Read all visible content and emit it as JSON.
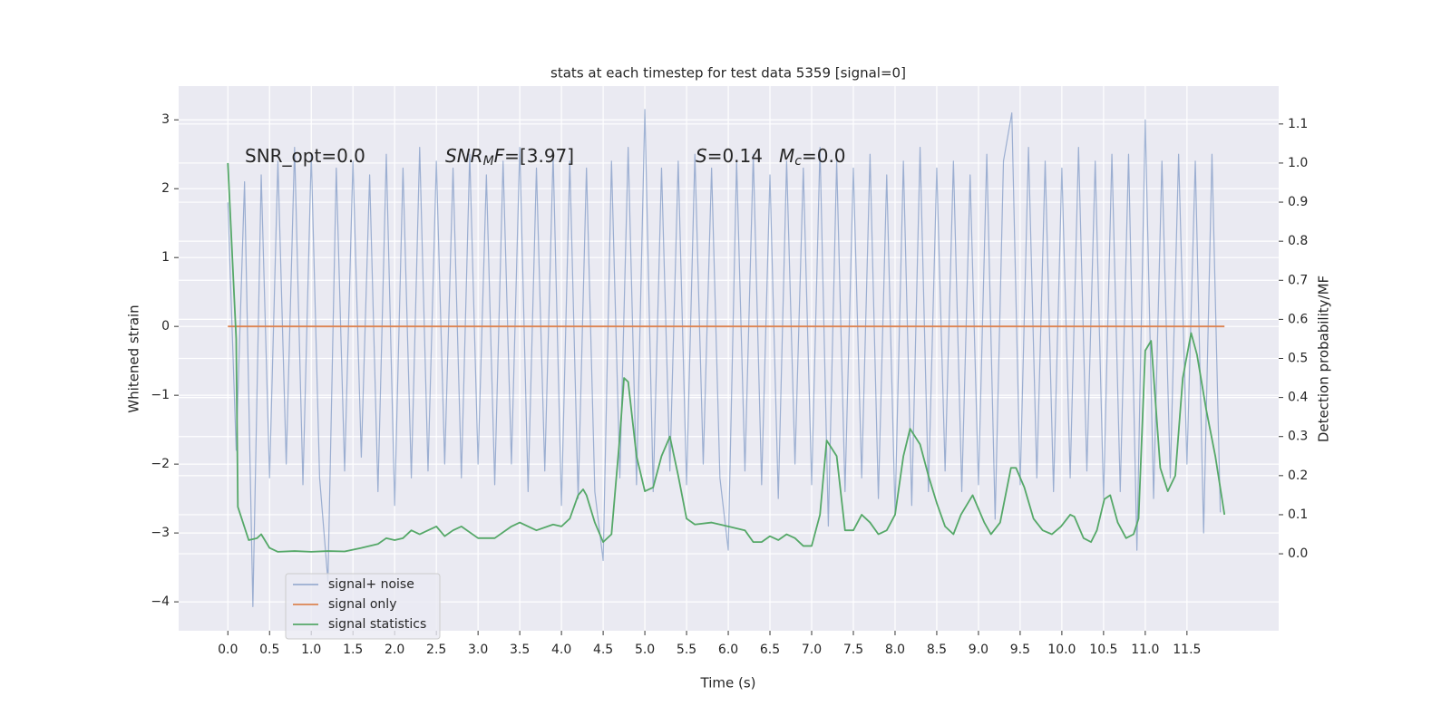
{
  "chart_data": {
    "type": "line",
    "title": "stats at each timestep for test data 5359 [signal=0]",
    "x_label": "Time (s)",
    "y_label": "Whitened strain",
    "y2_label": "Detection probability/MF",
    "xlim": [
      -0.59,
      12.6
    ],
    "ylim": [
      -4.42,
      3.49
    ],
    "y2lim": [
      -0.197,
      1.197
    ],
    "xticks": [
      {
        "value": 0,
        "label": "0.0"
      },
      0.5,
      {
        "value": 1,
        "label": "1.0"
      },
      1.5,
      {
        "value": 2,
        "label": "2.0"
      },
      2.5,
      {
        "value": 3,
        "label": "3.0"
      },
      3.5,
      {
        "value": 4,
        "label": "4.0"
      },
      4.5,
      {
        "value": 5,
        "label": "5.0"
      },
      5.5,
      {
        "value": 6,
        "label": "6.0"
      },
      6.5,
      {
        "value": 7,
        "label": "7.0"
      },
      7.5,
      {
        "value": 8,
        "label": "8.0"
      },
      8.5,
      {
        "value": 9,
        "label": "9.0"
      },
      9.5,
      {
        "value": 10,
        "label": "10.0"
      },
      10.5,
      {
        "value": 11,
        "label": "11.0"
      },
      11.5
    ],
    "yticks": [
      {
        "value": -4,
        "label": "−4"
      },
      {
        "value": -3,
        "label": "−3"
      },
      {
        "value": -2,
        "label": "−2"
      },
      {
        "value": -1,
        "label": "−1"
      },
      0,
      1,
      2,
      3
    ],
    "y2ticks": [
      {
        "value": 0,
        "label": "0.0"
      },
      0.1,
      0.2,
      0.3,
      0.4,
      0.5,
      0.6,
      0.7,
      0.8,
      0.9,
      {
        "value": 1,
        "label": "1.0"
      },
      1.1
    ],
    "grid": true,
    "legend": "lower left",
    "annotations": [
      [
        {
          "text": "SNR_opt=0.0"
        }
      ],
      [
        {
          "text": "SNR",
          "italic": true
        },
        {
          "text": "M",
          "italic": true,
          "sub": true
        },
        {
          "text": "F",
          "italic": true
        },
        {
          "text": "=[3.97]"
        }
      ],
      [
        {
          "text": "S",
          "italic": true
        },
        {
          "text": "=0.14"
        }
      ],
      [
        {
          "text": "M",
          "italic": true
        },
        {
          "text": "c",
          "italic": true,
          "sub": true
        },
        {
          "text": "=0.0"
        }
      ]
    ],
    "series": [
      {
        "name": "signal+ noise",
        "color": "#4c72b0",
        "opacity": 0.5,
        "x": [
          0.0,
          0.1,
          0.2,
          0.3,
          0.4,
          0.5,
          0.6,
          0.7,
          0.8,
          0.9,
          1.0,
          1.1,
          1.2,
          1.3,
          1.4,
          1.5,
          1.6,
          1.7,
          1.8,
          1.9,
          2.0,
          2.1,
          2.2,
          2.3,
          2.4,
          2.5,
          2.6,
          2.7,
          2.8,
          2.9,
          3.0,
          3.1,
          3.2,
          3.3,
          3.4,
          3.5,
          3.6,
          3.7,
          3.8,
          3.9,
          4.0,
          4.1,
          4.2,
          4.3,
          4.4,
          4.5,
          4.6,
          4.7,
          4.8,
          4.9,
          5.0,
          5.1,
          5.2,
          5.3,
          5.4,
          5.5,
          5.6,
          5.7,
          5.8,
          5.9,
          6.0,
          6.1,
          6.2,
          6.3,
          6.4,
          6.5,
          6.6,
          6.7,
          6.8,
          6.9,
          7.0,
          7.1,
          7.2,
          7.3,
          7.4,
          7.5,
          7.6,
          7.7,
          7.8,
          7.9,
          8.0,
          8.1,
          8.2,
          8.3,
          8.4,
          8.5,
          8.6,
          8.7,
          8.8,
          8.9,
          9.0,
          9.1,
          9.2,
          9.3,
          9.4,
          9.5,
          9.6,
          9.7,
          9.8,
          9.9,
          10.0,
          10.1,
          10.2,
          10.3,
          10.4,
          10.5,
          10.6,
          10.7,
          10.8,
          10.9,
          11.0,
          11.1,
          11.2,
          11.3,
          11.4,
          11.5,
          11.6,
          11.7,
          11.8,
          11.9
        ],
        "values": [
          1.8,
          -1.8,
          2.1,
          -4.07,
          2.2,
          -2.2,
          2.4,
          -2.0,
          2.6,
          -2.3,
          2.5,
          -2.2,
          -3.7,
          2.3,
          -2.1,
          2.4,
          -1.9,
          2.2,
          -2.4,
          2.5,
          -2.6,
          2.3,
          -2.2,
          2.6,
          -2.1,
          2.4,
          -2.0,
          2.3,
          -2.2,
          2.5,
          -2.0,
          2.2,
          -2.3,
          2.4,
          -2.0,
          2.6,
          -2.4,
          2.3,
          -2.1,
          2.5,
          -2.6,
          2.4,
          -2.5,
          2.3,
          -2.4,
          -3.4,
          2.4,
          -2.2,
          2.6,
          -2.3,
          3.15,
          -2.4,
          2.3,
          -2.1,
          2.4,
          -2.3,
          2.5,
          -2.0,
          2.3,
          -2.2,
          -3.25,
          2.4,
          -2.1,
          2.5,
          -2.3,
          2.2,
          -2.5,
          2.4,
          -2.0,
          2.3,
          -2.3,
          2.6,
          -2.9,
          2.4,
          -2.4,
          2.3,
          -2.2,
          2.5,
          -2.5,
          2.2,
          -2.7,
          2.4,
          -2.6,
          2.6,
          -2.4,
          2.3,
          -2.1,
          2.4,
          -2.4,
          2.2,
          -2.3,
          2.5,
          -2.8,
          2.4,
          3.1,
          -2.3,
          2.6,
          -2.2,
          2.4,
          -2.4,
          2.3,
          -2.2,
          2.6,
          -2.1,
          2.4,
          -2.5,
          2.5,
          -2.4,
          2.5,
          -3.25,
          3.0,
          -2.5,
          2.4,
          -2.2,
          2.5,
          -2.0,
          2.4,
          -3.0,
          2.5,
          -2.7
        ]
      },
      {
        "name": "signal only",
        "color": "#dd8452",
        "opacity": 1,
        "x": [
          0.0,
          11.95
        ],
        "values": [
          0,
          0
        ]
      },
      {
        "name": "signal statistics",
        "color": "#55a868",
        "opacity": 1,
        "axis": "y2",
        "x": [
          0.0,
          0.1,
          0.12,
          0.25,
          0.35,
          0.4,
          0.5,
          0.6,
          0.8,
          1.0,
          1.2,
          1.4,
          1.6,
          1.8,
          1.9,
          2.0,
          2.1,
          2.2,
          2.3,
          2.4,
          2.5,
          2.6,
          2.7,
          2.8,
          3.0,
          3.2,
          3.4,
          3.5,
          3.7,
          3.9,
          4.0,
          4.1,
          4.2,
          4.26,
          4.3,
          4.4,
          4.5,
          4.6,
          4.7,
          4.75,
          4.8,
          4.9,
          5.0,
          5.1,
          5.2,
          5.3,
          5.4,
          5.5,
          5.6,
          5.8,
          6.0,
          6.2,
          6.3,
          6.4,
          6.5,
          6.6,
          6.7,
          6.8,
          6.9,
          7.0,
          7.1,
          7.18,
          7.3,
          7.4,
          7.5,
          7.6,
          7.7,
          7.8,
          7.9,
          8.0,
          8.1,
          8.18,
          8.3,
          8.4,
          8.5,
          8.6,
          8.7,
          8.79,
          8.93,
          9.07,
          9.15,
          9.26,
          9.39,
          9.45,
          9.55,
          9.66,
          9.77,
          9.88,
          9.99,
          10.1,
          10.15,
          10.26,
          10.35,
          10.42,
          10.51,
          10.58,
          10.67,
          10.77,
          10.86,
          10.92,
          11.0,
          11.07,
          11.18,
          11.27,
          11.36,
          11.45,
          11.55,
          11.62,
          11.73,
          11.84,
          11.95
        ],
        "values": [
          1.0,
          0.55,
          0.12,
          0.035,
          0.04,
          0.05,
          0.015,
          0.005,
          0.007,
          0.005,
          0.007,
          0.006,
          0.015,
          0.025,
          0.04,
          0.035,
          0.04,
          0.06,
          0.05,
          0.06,
          0.07,
          0.045,
          0.06,
          0.07,
          0.04,
          0.04,
          0.07,
          0.08,
          0.06,
          0.075,
          0.07,
          0.09,
          0.15,
          0.165,
          0.15,
          0.08,
          0.03,
          0.05,
          0.3,
          0.45,
          0.44,
          0.25,
          0.16,
          0.17,
          0.25,
          0.3,
          0.2,
          0.09,
          0.075,
          0.08,
          0.07,
          0.06,
          0.03,
          0.03,
          0.045,
          0.035,
          0.05,
          0.04,
          0.02,
          0.02,
          0.1,
          0.29,
          0.25,
          0.06,
          0.06,
          0.1,
          0.08,
          0.05,
          0.06,
          0.1,
          0.25,
          0.32,
          0.28,
          0.2,
          0.13,
          0.07,
          0.05,
          0.1,
          0.15,
          0.08,
          0.05,
          0.08,
          0.22,
          0.22,
          0.17,
          0.09,
          0.06,
          0.05,
          0.07,
          0.1,
          0.095,
          0.04,
          0.03,
          0.06,
          0.14,
          0.15,
          0.08,
          0.04,
          0.05,
          0.09,
          0.52,
          0.545,
          0.22,
          0.16,
          0.2,
          0.45,
          0.565,
          0.51,
          0.37,
          0.25,
          0.1
        ]
      }
    ]
  }
}
